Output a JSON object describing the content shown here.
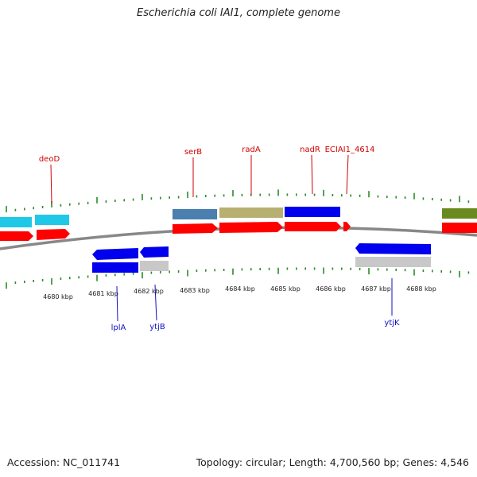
{
  "title": "Escherichia coli IAI1, complete genome",
  "accession": "Accession: NC_011741",
  "summary": "Topology: circular; Length: 4,700,560 bp; Genes: 4,546",
  "kbp_labels": [
    "4680 kbp",
    "4681 kbp",
    "4682 kbp",
    "4683 kbp",
    "4684 kbp",
    "4685 kbp",
    "4686 kbp",
    "4687 kbp",
    "4688 kbp"
  ],
  "gene_labels_top": [
    "deoD",
    "serB",
    "radA",
    "nadR",
    "ECIAI1_4614"
  ],
  "gene_labels_bottom": [
    "lplA",
    "ytjB",
    "ytjK"
  ],
  "colors": {
    "cds_red": "#ff0000",
    "cyan": "#20c8e8",
    "steelblue": "#4a7fb0",
    "khaki": "#b8b070",
    "blue": "#0000ee",
    "olive": "#6a8a20",
    "gray": "#c8c8c8",
    "tick_green": "#2a8a2a",
    "backbone": "#888888"
  }
}
